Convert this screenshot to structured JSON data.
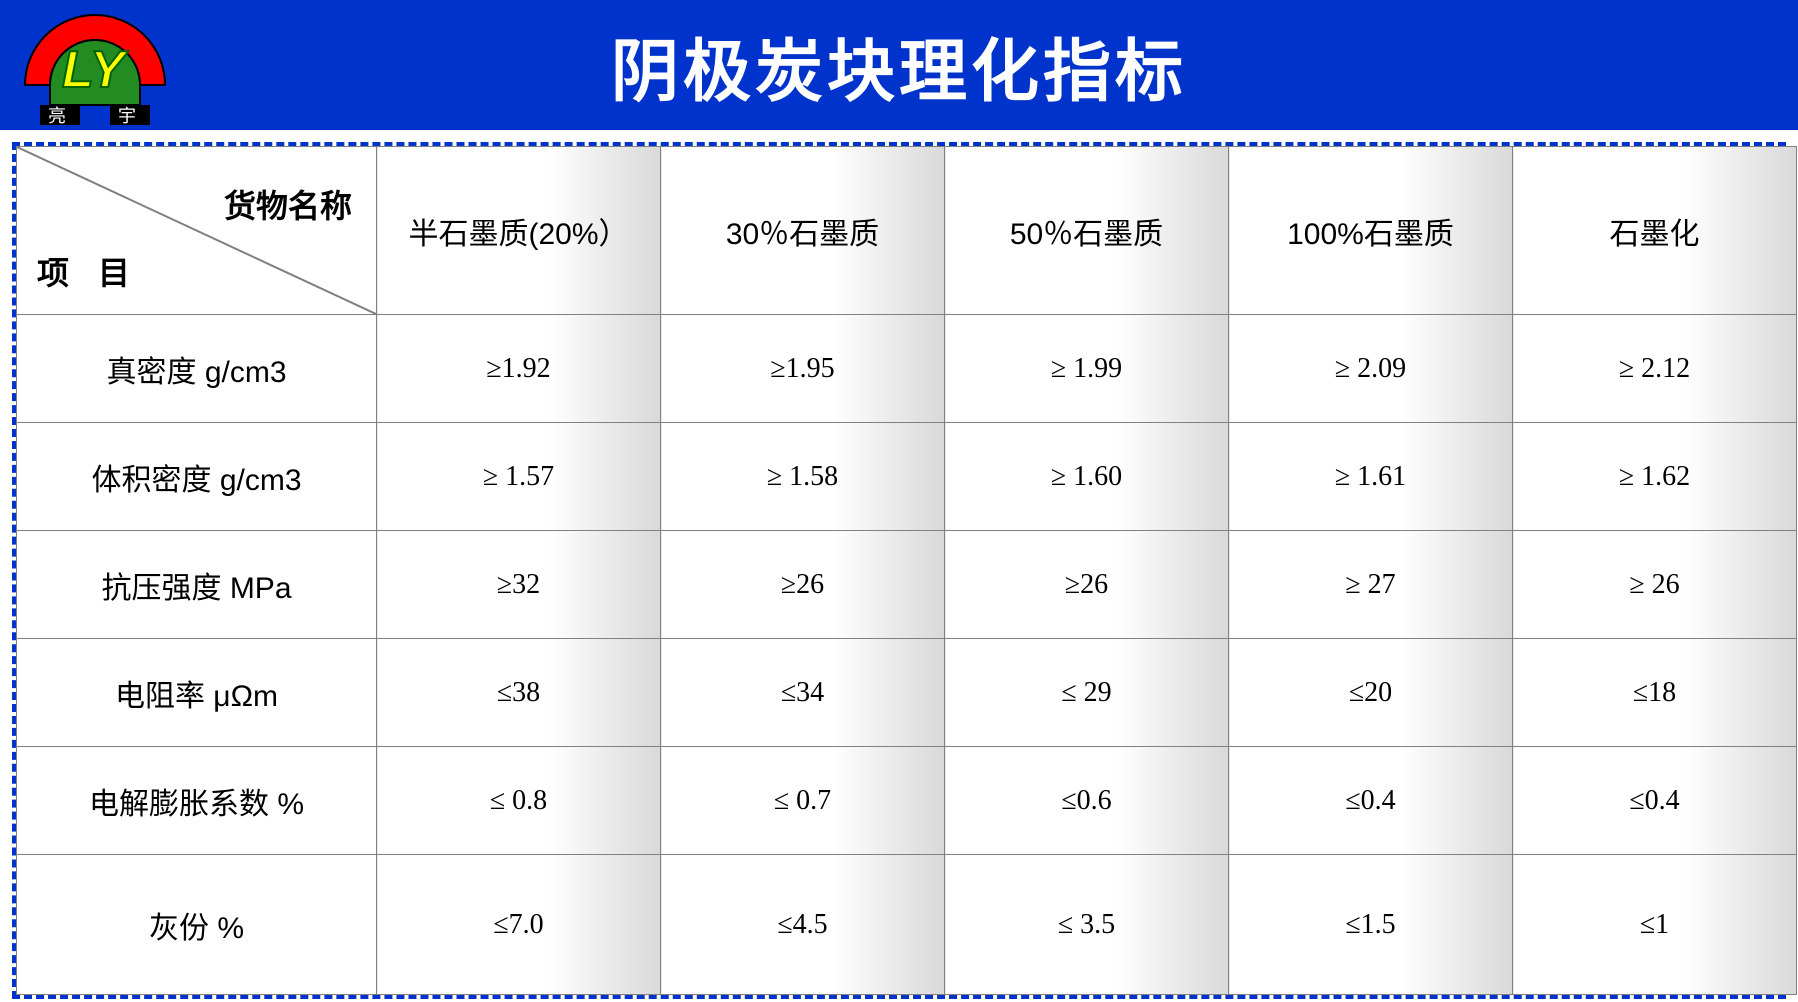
{
  "title": "阴极炭块理化指标",
  "logo": {
    "letters": "LY",
    "chars": "亮 宇",
    "arch_color_red": "#ff0000",
    "arch_color_green": "#228B22",
    "text_color": "#ffff00"
  },
  "corner": {
    "top": "货物名称",
    "bottom": "项 目"
  },
  "columns": [
    "半石墨质(20%）",
    "30％石墨质",
    "50％石墨质",
    "100%石墨质",
    "石墨化"
  ],
  "rows": [
    {
      "label": "真密度   g/cm3",
      "values": [
        "≥1.92",
        "≥1.95",
        "≥ 1.99",
        "≥ 2.09",
        "≥ 2.12"
      ]
    },
    {
      "label": "体积密度 g/cm3",
      "values": [
        "≥ 1.57",
        "≥ 1.58",
        "≥ 1.60",
        "≥ 1.61",
        "≥ 1.62"
      ]
    },
    {
      "label": "抗压强度   MPa",
      "values": [
        "≥32",
        "≥26",
        "≥26",
        "≥ 27",
        "≥ 26"
      ]
    },
    {
      "label": "电阻率 μΩm",
      "values": [
        "≤38",
        "≤34",
        "≤ 29",
        "≤20",
        "≤18"
      ]
    },
    {
      "label": "电解膨胀系数  %",
      "values": [
        "≤ 0.8",
        "≤ 0.7",
        "≤0.6",
        "≤0.4",
        "≤0.4"
      ]
    },
    {
      "label": "灰份 %",
      "values": [
        "≤7.0",
        "≤4.5",
        "≤ 3.5",
        "≤1.5",
        "≤1"
      ]
    }
  ],
  "colors": {
    "header_bg": "#0033cc",
    "border_dash": "#0033cc",
    "cell_border": "#808080",
    "shade": "#d9d9d9"
  }
}
